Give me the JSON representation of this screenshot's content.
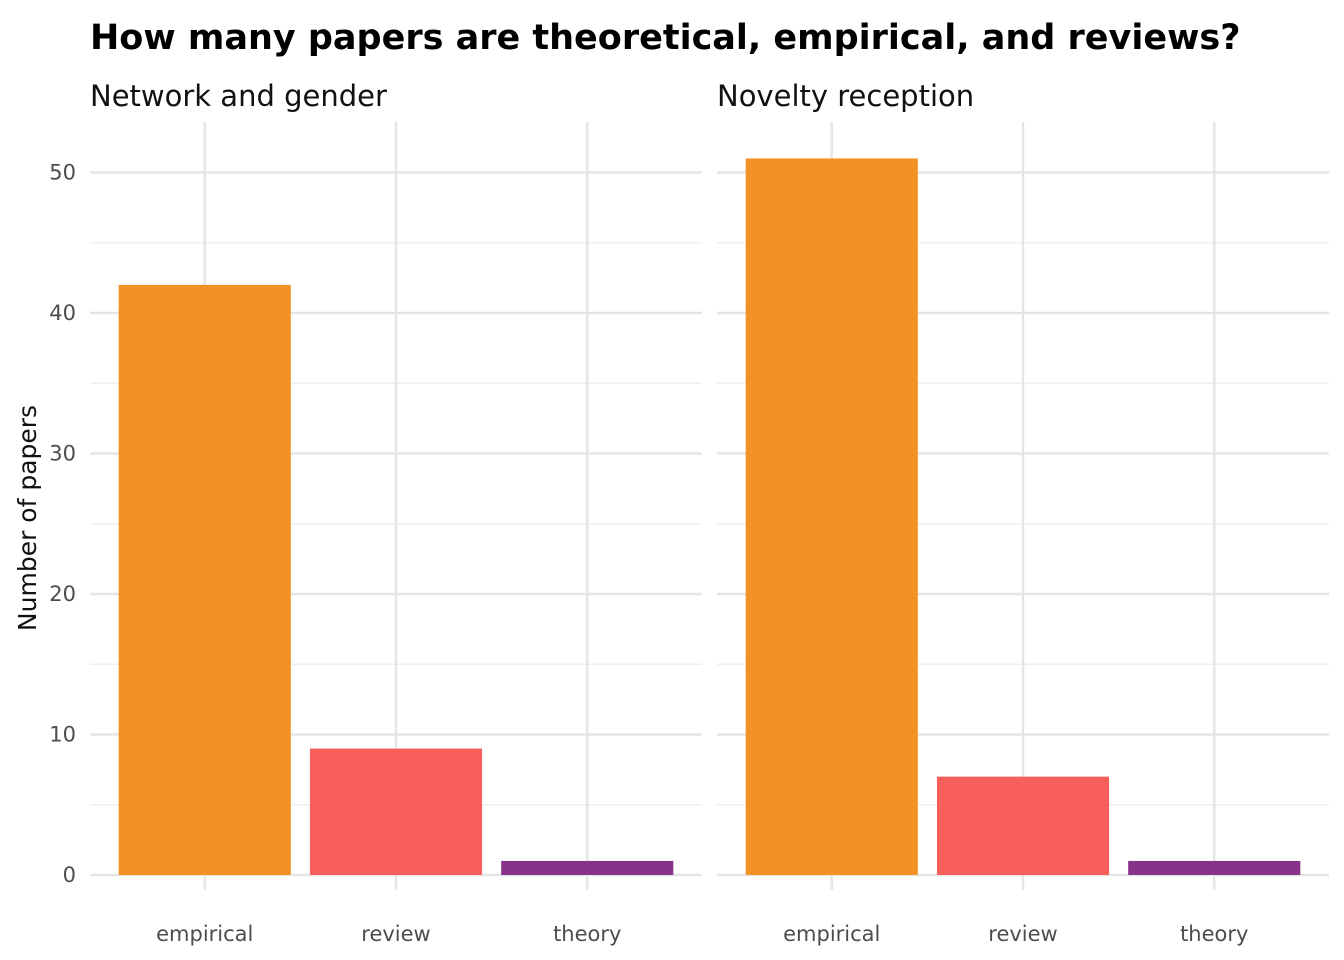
{
  "chart_data": {
    "type": "bar",
    "title": "How many papers are theoretical, empirical, and reviews?",
    "ylabel": "Number of papers",
    "xlabel": "",
    "ylim": [
      0,
      53.5
    ],
    "y_ticks": [
      0,
      10,
      20,
      30,
      40,
      50
    ],
    "grid": true,
    "categories": [
      "empirical",
      "review",
      "theory"
    ],
    "colors": {
      "empirical": "#F39124",
      "review": "#F85F5B",
      "theory": "#88338A"
    },
    "facets": [
      {
        "title": "Network and gender",
        "values": [
          42,
          9,
          1
        ]
      },
      {
        "title": "Novelty reception",
        "values": [
          51,
          7,
          1
        ]
      }
    ]
  }
}
